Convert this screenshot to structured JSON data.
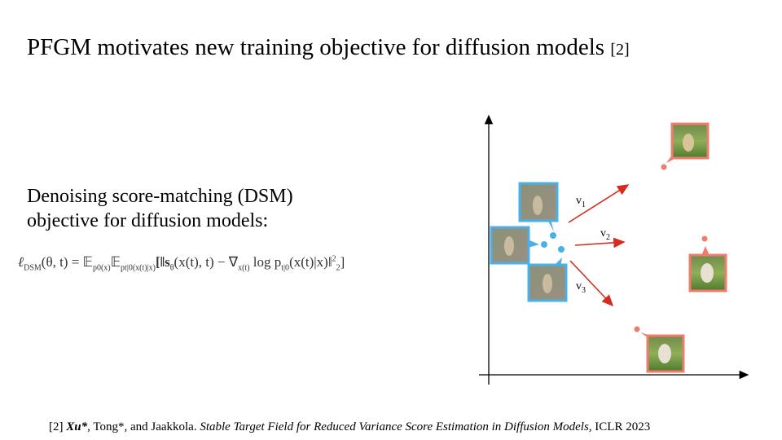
{
  "title": {
    "text": "PFGM motivates new training objective for diffusion models",
    "ref": "[2]"
  },
  "body": {
    "lines": [
      "Denoising score-matching (DSM)",
      "objective for diffusion models:"
    ]
  },
  "formula": {
    "segments": [
      "ℓ",
      "DSM",
      "(θ, t) = 𝔼",
      "p0(x)",
      "𝔼",
      "pt|0(x(t)|x)",
      "[‖s",
      "θ",
      "(x(t), t) − ∇",
      "x(t)",
      " log p",
      "t|0",
      "(x(t)|x)‖",
      "2",
      "2",
      "]"
    ]
  },
  "diagram": {
    "labels": [
      {
        "letter": "v",
        "index": "1"
      },
      {
        "letter": "v",
        "index": "2"
      },
      {
        "letter": "v",
        "index": "3"
      }
    ]
  },
  "reference": {
    "number": "[2]",
    "first_author": "Xu*",
    "other_authors": ", Tong*, and Jaakkola.",
    "paper_title": "Stable Target Field for Reduced Variance Score Estimation in Diffusion Models,",
    "venue": "ICLR 2023"
  }
}
